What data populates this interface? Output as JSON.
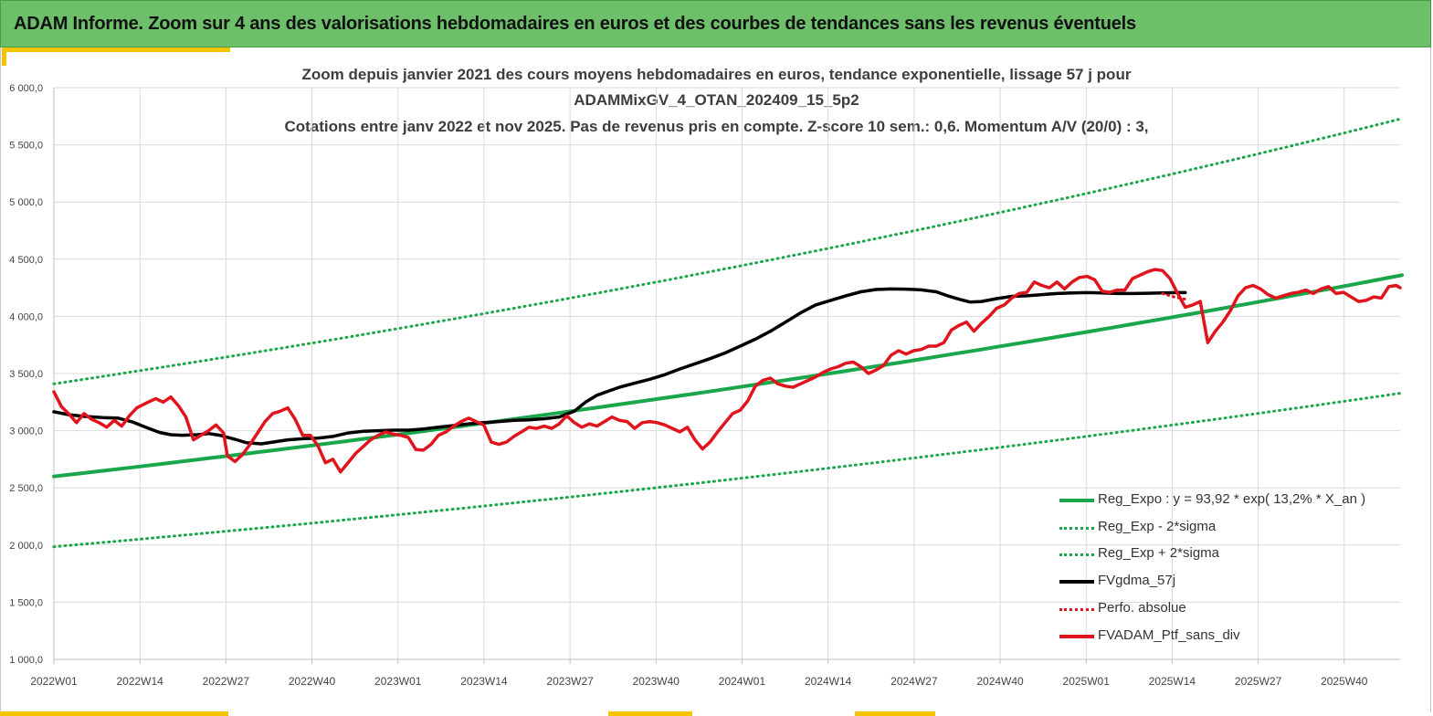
{
  "header": {
    "title": "ADAM Informe. Zoom sur 4 ans des valorisations hebdomadaires en euros et des courbes de tendances sans les revenus éventuels"
  },
  "chart_data": {
    "type": "line",
    "title": "Zoom depuis janvier 2021 des cours moyens hebdomadaires  en euros, tendance exponentielle, lissage 57 j pour",
    "subtitle": "ADAMMixGV_4_OTAN_202409_15_5p2",
    "subtitle2": "Cotations entre janv 2022 et nov 2025. Pas de revenus pris en compte. Z-score 10 sem.: 0,6. Momentum A/V (20/0) : 3,",
    "xlabel": "",
    "ylabel": "",
    "ylim": [
      1000,
      6000
    ],
    "y_ticks": [
      "1 000,0",
      "1 500,0",
      "2 000,0",
      "2 500,0",
      "3 000,0",
      "3 500,0",
      "4 000,0",
      "4 500,0",
      "5 000,0",
      "5 500,0",
      "6 000,0"
    ],
    "x_ticks": [
      "2022W01",
      "2022W14",
      "2022W27",
      "2022W40",
      "2023W01",
      "2023W14",
      "2023W27",
      "2023W40",
      "2024W01",
      "2024W14",
      "2024W27",
      "2024W40",
      "2025W01",
      "2025W14",
      "2025W27",
      "2025W40"
    ],
    "x_range_weeks": [
      0,
      204
    ],
    "grid": true,
    "legend_position": "bottom-right",
    "series": [
      {
        "name": "Reg_Expo : y = 93,92 * exp( 13,2% *  X_an )",
        "color": "#1aa64a",
        "style": "solid",
        "start": 2600,
        "end": 4360
      },
      {
        "name": "Reg_Exp - 2*sigma",
        "color": "#1aa64a",
        "style": "dotted",
        "start": 1985,
        "end": 3330
      },
      {
        "name": "Reg_Exp + 2*sigma",
        "color": "#1aa64a",
        "style": "dotted",
        "start": 3410,
        "end": 5730
      },
      {
        "name": "FVgdma_57j",
        "color": "#000000",
        "style": "solid",
        "points": [
          [
            0,
            3165
          ],
          [
            4,
            3140
          ],
          [
            8,
            3125
          ],
          [
            13,
            3115
          ],
          [
            17,
            3110
          ],
          [
            21,
            3075
          ],
          [
            24,
            3035
          ],
          [
            28,
            2985
          ],
          [
            31,
            2965
          ],
          [
            34,
            2960
          ],
          [
            38,
            2965
          ],
          [
            41,
            2975
          ],
          [
            44,
            2960
          ],
          [
            48,
            2925
          ],
          [
            51,
            2895
          ],
          [
            55,
            2885
          ],
          [
            58,
            2900
          ],
          [
            62,
            2920
          ],
          [
            66,
            2930
          ],
          [
            70,
            2935
          ],
          [
            74,
            2950
          ],
          [
            78,
            2980
          ],
          [
            82,
            2995
          ],
          [
            86,
            3000
          ],
          [
            90,
            3005
          ],
          [
            94,
            3005
          ],
          [
            98,
            3015
          ],
          [
            102,
            3030
          ],
          [
            106,
            3045
          ],
          [
            110,
            3060
          ],
          [
            114,
            3070
          ],
          [
            118,
            3080
          ],
          [
            122,
            3090
          ],
          [
            126,
            3095
          ],
          [
            130,
            3105
          ],
          [
            134,
            3120
          ],
          [
            138,
            3170
          ],
          [
            141,
            3250
          ],
          [
            144,
            3310
          ],
          [
            147,
            3345
          ],
          [
            150,
            3380
          ],
          [
            154,
            3415
          ],
          [
            158,
            3450
          ],
          [
            162,
            3490
          ],
          [
            166,
            3540
          ],
          [
            170,
            3585
          ],
          [
            174,
            3630
          ],
          [
            178,
            3680
          ],
          [
            182,
            3740
          ],
          [
            186,
            3800
          ],
          [
            190,
            3870
          ],
          [
            194,
            3950
          ],
          [
            198,
            4030
          ],
          [
            202,
            4100
          ],
          [
            206,
            4140
          ],
          [
            210,
            4180
          ],
          [
            214,
            4215
          ],
          [
            218,
            4235
          ],
          [
            222,
            4240
          ],
          [
            226,
            4238
          ],
          [
            230,
            4232
          ],
          [
            234,
            4215
          ],
          [
            237,
            4180
          ],
          [
            240,
            4150
          ],
          [
            243,
            4125
          ],
          [
            246,
            4130
          ],
          [
            250,
            4155
          ],
          [
            254,
            4175
          ],
          [
            258,
            4180
          ],
          [
            262,
            4190
          ],
          [
            266,
            4200
          ],
          [
            270,
            4205
          ],
          [
            274,
            4208
          ],
          [
            278,
            4205
          ],
          [
            282,
            4200
          ],
          [
            286,
            4200
          ],
          [
            290,
            4202
          ],
          [
            294,
            4205
          ],
          [
            298,
            4208
          ],
          [
            300,
            4208
          ]
        ]
      },
      {
        "name": "Perfo. absolue",
        "color": "#e0141c",
        "style": "dotted",
        "points": [
          [
            294,
            4200
          ],
          [
            297,
            4170
          ],
          [
            300,
            4150
          ]
        ]
      },
      {
        "name": "FVADAM_Ptf_sans_div",
        "color": "#e0141c",
        "style": "solid",
        "points": [
          [
            0,
            3340
          ],
          [
            2,
            3210
          ],
          [
            4,
            3145
          ],
          [
            6,
            3070
          ],
          [
            8,
            3150
          ],
          [
            10,
            3100
          ],
          [
            12,
            3070
          ],
          [
            14,
            3030
          ],
          [
            16,
            3090
          ],
          [
            18,
            3040
          ],
          [
            20,
            3130
          ],
          [
            22,
            3200
          ],
          [
            25,
            3250
          ],
          [
            27,
            3280
          ],
          [
            29,
            3250
          ],
          [
            31,
            3295
          ],
          [
            33,
            3220
          ],
          [
            35,
            3120
          ],
          [
            37,
            2920
          ],
          [
            39,
            2960
          ],
          [
            41,
            3000
          ],
          [
            43,
            3050
          ],
          [
            45,
            2980
          ],
          [
            46,
            2780
          ],
          [
            48,
            2730
          ],
          [
            50,
            2790
          ],
          [
            52,
            2880
          ],
          [
            54,
            2980
          ],
          [
            56,
            3080
          ],
          [
            58,
            3150
          ],
          [
            60,
            3170
          ],
          [
            62,
            3200
          ],
          [
            64,
            3100
          ],
          [
            66,
            2960
          ],
          [
            68,
            2960
          ],
          [
            70,
            2870
          ],
          [
            72,
            2720
          ],
          [
            74,
            2750
          ],
          [
            76,
            2640
          ],
          [
            78,
            2720
          ],
          [
            80,
            2800
          ],
          [
            82,
            2860
          ],
          [
            84,
            2920
          ],
          [
            86,
            2960
          ],
          [
            88,
            2990
          ],
          [
            90,
            2970
          ],
          [
            92,
            2960
          ],
          [
            94,
            2940
          ],
          [
            96,
            2835
          ],
          [
            98,
            2830
          ],
          [
            100,
            2880
          ],
          [
            102,
            2960
          ],
          [
            104,
            2990
          ],
          [
            106,
            3040
          ],
          [
            108,
            3080
          ],
          [
            110,
            3110
          ],
          [
            112,
            3080
          ],
          [
            114,
            3050
          ],
          [
            116,
            2900
          ],
          [
            118,
            2880
          ],
          [
            120,
            2900
          ],
          [
            122,
            2950
          ],
          [
            124,
            2990
          ],
          [
            126,
            3030
          ],
          [
            128,
            3020
          ],
          [
            130,
            3040
          ],
          [
            132,
            3020
          ],
          [
            134,
            3060
          ],
          [
            136,
            3130
          ],
          [
            138,
            3070
          ],
          [
            140,
            3030
          ],
          [
            142,
            3060
          ],
          [
            144,
            3040
          ],
          [
            146,
            3080
          ],
          [
            148,
            3120
          ],
          [
            150,
            3090
          ],
          [
            152,
            3080
          ],
          [
            154,
            3020
          ],
          [
            156,
            3070
          ],
          [
            158,
            3080
          ],
          [
            160,
            3070
          ],
          [
            162,
            3050
          ],
          [
            164,
            3020
          ],
          [
            166,
            2990
          ],
          [
            168,
            3030
          ],
          [
            170,
            2920
          ],
          [
            172,
            2840
          ],
          [
            174,
            2900
          ],
          [
            176,
            2990
          ],
          [
            178,
            3070
          ],
          [
            180,
            3150
          ],
          [
            182,
            3180
          ],
          [
            184,
            3260
          ],
          [
            186,
            3390
          ],
          [
            188,
            3440
          ],
          [
            190,
            3460
          ],
          [
            192,
            3410
          ],
          [
            194,
            3390
          ],
          [
            196,
            3380
          ],
          [
            198,
            3410
          ],
          [
            200,
            3440
          ],
          [
            202,
            3470
          ],
          [
            204,
            3510
          ],
          [
            206,
            3540
          ],
          [
            208,
            3560
          ],
          [
            210,
            3590
          ],
          [
            212,
            3600
          ],
          [
            214,
            3560
          ],
          [
            216,
            3500
          ],
          [
            218,
            3530
          ],
          [
            220,
            3570
          ],
          [
            222,
            3660
          ],
          [
            224,
            3700
          ],
          [
            226,
            3670
          ],
          [
            228,
            3700
          ],
          [
            230,
            3710
          ],
          [
            232,
            3740
          ],
          [
            234,
            3740
          ],
          [
            236,
            3770
          ],
          [
            238,
            3880
          ],
          [
            240,
            3920
          ],
          [
            242,
            3950
          ],
          [
            244,
            3870
          ],
          [
            246,
            3940
          ],
          [
            248,
            4000
          ],
          [
            250,
            4070
          ],
          [
            252,
            4100
          ],
          [
            254,
            4160
          ],
          [
            256,
            4200
          ],
          [
            258,
            4210
          ],
          [
            260,
            4300
          ],
          [
            262,
            4270
          ],
          [
            264,
            4250
          ],
          [
            266,
            4300
          ],
          [
            268,
            4240
          ],
          [
            270,
            4300
          ],
          [
            272,
            4340
          ],
          [
            274,
            4350
          ],
          [
            276,
            4320
          ],
          [
            278,
            4220
          ],
          [
            280,
            4210
          ],
          [
            282,
            4230
          ],
          [
            284,
            4230
          ],
          [
            286,
            4330
          ],
          [
            288,
            4360
          ],
          [
            290,
            4390
          ],
          [
            292,
            4410
          ],
          [
            294,
            4400
          ],
          [
            296,
            4330
          ],
          [
            298,
            4200
          ],
          [
            300,
            4080
          ],
          [
            302,
            4100
          ],
          [
            304,
            4130
          ],
          [
            306,
            3770
          ],
          [
            308,
            3870
          ],
          [
            310,
            3950
          ],
          [
            312,
            4050
          ],
          [
            314,
            4180
          ],
          [
            316,
            4250
          ],
          [
            318,
            4270
          ],
          [
            320,
            4240
          ],
          [
            322,
            4190
          ],
          [
            324,
            4160
          ],
          [
            326,
            4180
          ],
          [
            328,
            4200
          ],
          [
            330,
            4210
          ],
          [
            332,
            4230
          ],
          [
            334,
            4200
          ],
          [
            336,
            4240
          ],
          [
            338,
            4260
          ],
          [
            340,
            4200
          ],
          [
            342,
            4210
          ],
          [
            344,
            4170
          ],
          [
            346,
            4130
          ],
          [
            348,
            4140
          ],
          [
            350,
            4170
          ],
          [
            352,
            4160
          ],
          [
            354,
            4260
          ],
          [
            356,
            4270
          ],
          [
            357,
            4250
          ]
        ]
      }
    ],
    "legend": [
      "Reg_Expo : y = 93,92 * exp( 13,2% *  X_an )",
      "Reg_Exp - 2*sigma",
      "Reg_Exp + 2*sigma",
      "FVgdma_57j",
      "Perfo. absolue",
      "FVADAM_Ptf_sans_div"
    ]
  }
}
